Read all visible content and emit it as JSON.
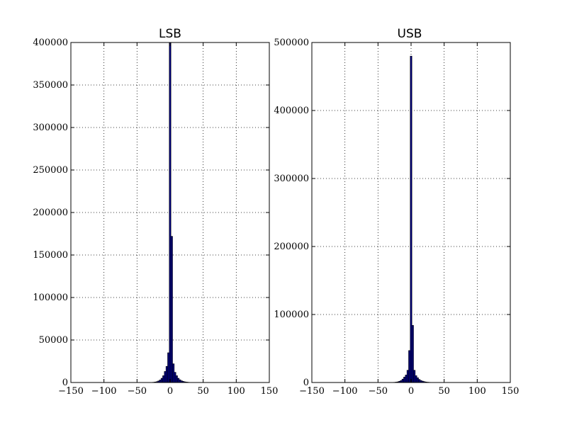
{
  "colors": {
    "bar_fill": "#000080",
    "bar_edge": "#000000",
    "background": "#ffffff"
  },
  "chart_data": [
    {
      "type": "bar",
      "title": "LSB",
      "xlabel": "",
      "ylabel": "",
      "xlim": [
        -150,
        150
      ],
      "ylim": [
        0,
        400000
      ],
      "grid": true,
      "x_ticks": [
        -150,
        -100,
        -50,
        0,
        50,
        100,
        150
      ],
      "x_tick_labels": [
        "−150",
        "−100",
        "−50",
        "0",
        "50",
        "100",
        "150"
      ],
      "y_ticks": [
        0,
        50000,
        100000,
        150000,
        200000,
        250000,
        300000,
        350000,
        400000
      ],
      "y_tick_labels": [
        "0",
        "50000",
        "100000",
        "150000",
        "200000",
        "250000",
        "300000",
        "350000",
        "400000"
      ],
      "bin_width": 2.5,
      "bin_centers": [
        -25,
        -22.5,
        -20,
        -17.5,
        -15,
        -12.5,
        -10,
        -7.5,
        -5,
        -2.5,
        0,
        2.5,
        5,
        7.5,
        10,
        12.5,
        15,
        17.5,
        20,
        22.5,
        25,
        27.5,
        30
      ],
      "values": [
        300,
        600,
        1000,
        1800,
        3000,
        5000,
        8000,
        13000,
        19000,
        35000,
        400000,
        172000,
        22000,
        12000,
        8000,
        5000,
        3200,
        2000,
        1300,
        800,
        500,
        300,
        150
      ]
    },
    {
      "type": "bar",
      "title": "USB",
      "xlabel": "",
      "ylabel": "",
      "xlim": [
        -150,
        150
      ],
      "ylim": [
        0,
        500000
      ],
      "grid": true,
      "x_ticks": [
        -150,
        -100,
        -50,
        0,
        50,
        100,
        150
      ],
      "x_tick_labels": [
        "−150",
        "−100",
        "−50",
        "0",
        "50",
        "100",
        "150"
      ],
      "y_ticks": [
        0,
        100000,
        200000,
        300000,
        400000,
        500000
      ],
      "y_tick_labels": [
        "0",
        "100000",
        "200000",
        "300000",
        "400000",
        "500000"
      ],
      "bin_width": 2.5,
      "bin_centers": [
        -25,
        -22.5,
        -20,
        -17.5,
        -15,
        -12.5,
        -10,
        -7.5,
        -5,
        -2.5,
        0,
        2.5,
        5,
        7.5,
        10,
        12.5,
        15,
        17.5,
        20,
        22.5,
        25,
        27.5,
        30
      ],
      "values": [
        300,
        600,
        1000,
        1800,
        3000,
        5000,
        8000,
        11000,
        18000,
        47000,
        480000,
        84000,
        18000,
        10000,
        7000,
        4500,
        3000,
        2000,
        1300,
        800,
        500,
        300,
        150
      ]
    }
  ]
}
